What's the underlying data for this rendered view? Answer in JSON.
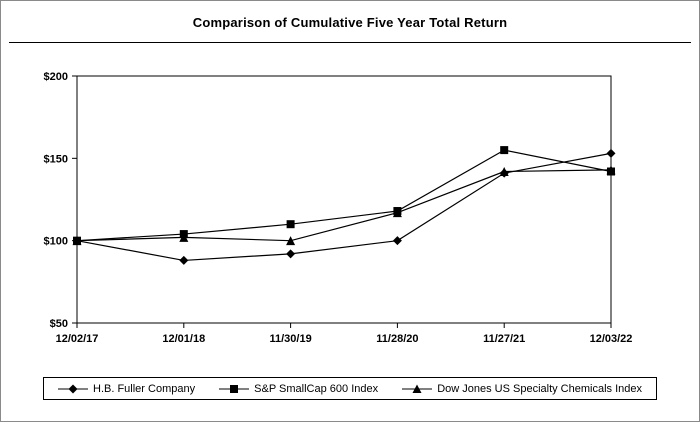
{
  "chart_data": {
    "type": "line",
    "title": "Comparison of Cumulative Five Year Total Return",
    "categories": [
      "12/02/17",
      "12/01/18",
      "11/30/19",
      "11/28/20",
      "11/27/21",
      "12/03/22"
    ],
    "series": [
      {
        "name": "H.B. Fuller Company",
        "marker": "diamond",
        "values": [
          100,
          88,
          92,
          100,
          141,
          153
        ]
      },
      {
        "name": "S&P SmallCap 600 Index",
        "marker": "square",
        "values": [
          100,
          104,
          110,
          118,
          155,
          142
        ]
      },
      {
        "name": "Dow Jones US Specialty Chemicals Index",
        "marker": "triangle",
        "values": [
          100,
          102,
          100,
          117,
          142,
          143
        ]
      }
    ],
    "xlabel": "",
    "ylabel": "",
    "ylim": [
      50,
      200
    ],
    "yticks": [
      50,
      100,
      150,
      200
    ],
    "ytick_labels": [
      "$50",
      "$100",
      "$150",
      "$200"
    ],
    "grid": false,
    "legend_position": "bottom",
    "line_color": "#000000",
    "marker_color": "#000000",
    "background_color": "#ffffff"
  }
}
